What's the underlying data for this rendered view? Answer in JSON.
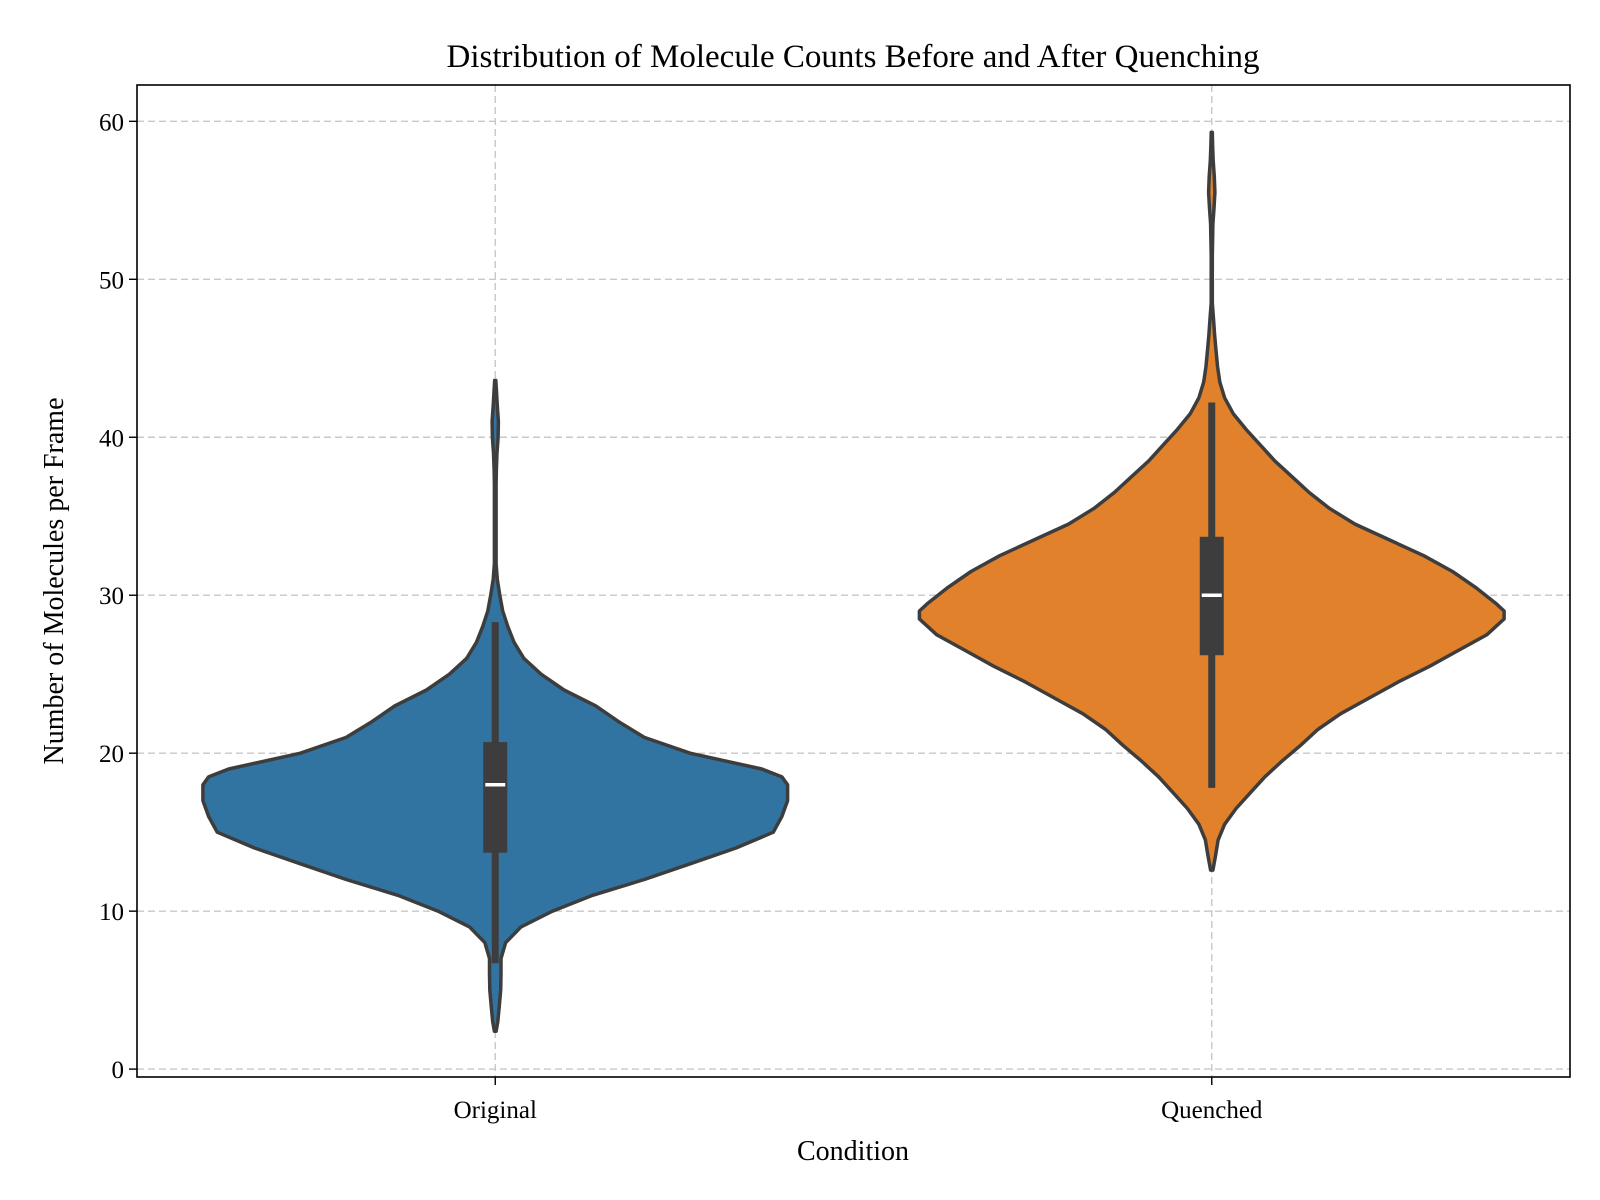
{
  "chart_data": {
    "type": "violin",
    "title": "Distribution of Molecule Counts Before and After Quenching",
    "xlabel": "Condition",
    "ylabel": "Number of Molecules per Frame",
    "ylim": [
      -0.5,
      62.3
    ],
    "yticks": [
      0,
      10,
      20,
      30,
      40,
      50,
      60
    ],
    "ytick_labels": [
      "0",
      "10",
      "20",
      "30",
      "40",
      "50",
      "60"
    ],
    "grid": true,
    "categories": [
      "Original",
      "Quenched"
    ],
    "series": [
      {
        "category": "Original",
        "color": "#3274a1",
        "median": 18,
        "q1": 13.7,
        "q3": 20.7,
        "whisker_low": 6.7,
        "whisker_high": 28.3,
        "density_y": [
          2.4,
          3,
          4,
          5,
          6,
          7,
          8,
          9,
          10,
          11,
          12,
          13,
          14,
          15,
          16,
          17,
          18,
          18.5,
          19,
          20,
          21,
          22,
          23,
          24,
          25,
          26,
          27,
          28,
          29,
          30,
          31,
          32,
          33,
          34,
          35,
          36,
          37,
          38,
          39,
          40,
          41,
          42,
          43,
          43.6
        ],
        "density_w": [
          0.003,
          0.009,
          0.014,
          0.019,
          0.02,
          0.02,
          0.036,
          0.09,
          0.2,
          0.34,
          0.52,
          0.68,
          0.84,
          0.97,
          1.0,
          1.02,
          1.02,
          1.0,
          0.93,
          0.68,
          0.52,
          0.43,
          0.35,
          0.24,
          0.16,
          0.1,
          0.066,
          0.044,
          0.026,
          0.016,
          0.007,
          0.003,
          0.003,
          0.003,
          0.003,
          0.003,
          0.003,
          0.004,
          0.006,
          0.01,
          0.011,
          0.007,
          0.004,
          0.002
        ]
      },
      {
        "category": "Quenched",
        "color": "#e1812c",
        "median": 30,
        "q1": 26.2,
        "q3": 33.7,
        "whisker_low": 17.8,
        "whisker_high": 42.2,
        "density_y": [
          12.6,
          13.5,
          14.5,
          15.5,
          16.5,
          17.5,
          18.5,
          19.5,
          20.5,
          21.5,
          22.5,
          23.5,
          24.5,
          25.5,
          26.5,
          27.5,
          28.5,
          29,
          29.5,
          30.5,
          31.5,
          32.5,
          33.5,
          34.5,
          35.5,
          36.5,
          37.5,
          38.5,
          39.5,
          40.5,
          41.5,
          42.5,
          43.5,
          44.5,
          45.5,
          46.5,
          47.5,
          48.5,
          49.5,
          50.5,
          51.5,
          52.5,
          53.5,
          54.5,
          55.5,
          56.5,
          57.5,
          58.5,
          59.3
        ],
        "density_w": [
          0.004,
          0.013,
          0.022,
          0.045,
          0.085,
          0.135,
          0.185,
          0.245,
          0.31,
          0.37,
          0.45,
          0.55,
          0.65,
          0.76,
          0.86,
          0.96,
          1.02,
          1.02,
          0.99,
          0.92,
          0.84,
          0.74,
          0.62,
          0.5,
          0.41,
          0.34,
          0.28,
          0.22,
          0.17,
          0.12,
          0.075,
          0.045,
          0.028,
          0.02,
          0.015,
          0.01,
          0.006,
          0.002,
          0.002,
          0.002,
          0.002,
          0.003,
          0.004,
          0.008,
          0.011,
          0.009,
          0.005,
          0.003,
          0.002
        ]
      }
    ]
  }
}
